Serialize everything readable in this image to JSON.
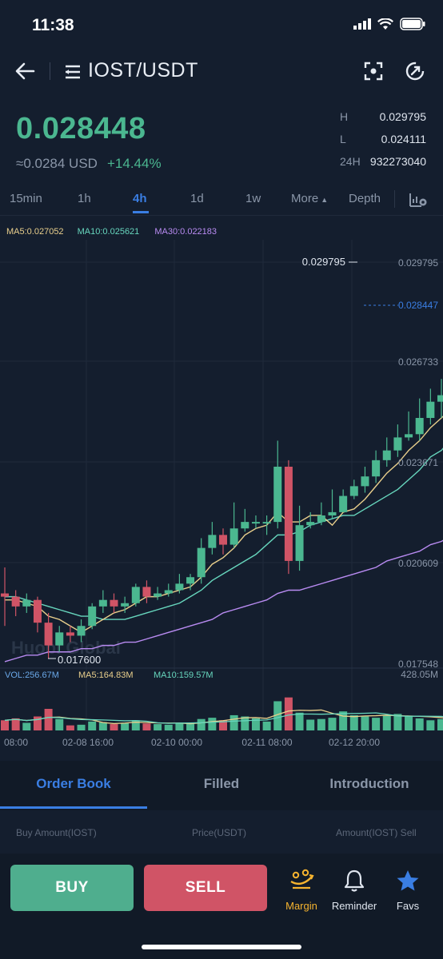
{
  "status": {
    "time": "11:38"
  },
  "header": {
    "pair": "IOST/USDT"
  },
  "ticker": {
    "last_price": "0.028448",
    "approx_usd": "≈0.0284 USD",
    "change": "+14.44%",
    "high_label": "H",
    "high": "0.029795",
    "low_label": "L",
    "low": "0.024111",
    "vol_label": "24H",
    "vol": "932273040"
  },
  "tabs": [
    "15min",
    "1h",
    "4h",
    "1d",
    "1w",
    "More",
    "Depth"
  ],
  "active_tab": "4h",
  "ma": {
    "ma5": "MA5:0.027052",
    "ma10": "MA10:0.025621",
    "ma30": "MA30:0.022183"
  },
  "chart_labels": {
    "y_ticks": [
      "0.029795",
      "0.026733",
      "0.023671",
      "0.020609",
      "0.017548"
    ],
    "current_price_tag": "0.028447",
    "high_marker": "0.029795",
    "low_marker": "0.017600",
    "watermark": "Huobi Global",
    "vol_ma": {
      "vol": "VOL:256.67M",
      "ma5": "MA5:164.83M",
      "ma10": "MA10:159.57M"
    },
    "vol_max": "428.05M",
    "x_ticks": [
      "08:00",
      "02-08 16:00",
      "02-10 00:00",
      "02-11 08:00",
      "02-12 20:00"
    ]
  },
  "colors": {
    "up": "#4bb790",
    "down": "#d05466",
    "ma5": "#e9cf8c",
    "ma10": "#67d6bd",
    "ma30": "#b98bf2",
    "accent": "#3a7ee3"
  },
  "chart_data": {
    "type": "candlestick",
    "x_labels": [
      "08:00",
      "02-08 16:00",
      "02-10 00:00",
      "02-11 08:00",
      "02-12 20:00"
    ],
    "ylim": [
      0.017,
      0.0302
    ],
    "candles": [
      [
        0.0196,
        0.0195,
        0.0204,
        0.0186
      ],
      [
        0.0195,
        0.0192,
        0.0197,
        0.0189
      ],
      [
        0.0192,
        0.0194,
        0.0196,
        0.019
      ],
      [
        0.0194,
        0.0187,
        0.0195,
        0.0184
      ],
      [
        0.0187,
        0.018,
        0.019,
        0.0176
      ],
      [
        0.018,
        0.0184,
        0.0186,
        0.0178
      ],
      [
        0.0184,
        0.0183,
        0.0186,
        0.0181
      ],
      [
        0.0183,
        0.0186,
        0.0188,
        0.0181
      ],
      [
        0.0186,
        0.0192,
        0.0193,
        0.0185
      ],
      [
        0.0192,
        0.0194,
        0.0197,
        0.019
      ],
      [
        0.0194,
        0.0192,
        0.0196,
        0.019
      ],
      [
        0.0192,
        0.0193,
        0.0195,
        0.019
      ],
      [
        0.0193,
        0.0198,
        0.0199,
        0.0192
      ],
      [
        0.0198,
        0.0195,
        0.02,
        0.0193
      ],
      [
        0.0195,
        0.0196,
        0.0198,
        0.0194
      ],
      [
        0.0196,
        0.0197,
        0.0199,
        0.0195
      ],
      [
        0.0197,
        0.0199,
        0.0202,
        0.0196
      ],
      [
        0.0199,
        0.0201,
        0.0202,
        0.0197
      ],
      [
        0.0201,
        0.021,
        0.0213,
        0.0199
      ],
      [
        0.021,
        0.0214,
        0.0218,
        0.0208
      ],
      [
        0.0214,
        0.0211,
        0.0216,
        0.0208
      ],
      [
        0.0211,
        0.0216,
        0.0224,
        0.021
      ],
      [
        0.0216,
        0.0218,
        0.0222,
        0.0215
      ],
      [
        0.0218,
        0.0218,
        0.022,
        0.0216
      ],
      [
        0.0218,
        0.0218,
        0.022,
        0.0214
      ],
      [
        0.0218,
        0.0235,
        0.0243,
        0.0216
      ],
      [
        0.0235,
        0.0206,
        0.0237,
        0.0202
      ],
      [
        0.0206,
        0.0217,
        0.0223,
        0.0203
      ],
      [
        0.0217,
        0.0218,
        0.0221,
        0.0216
      ],
      [
        0.0218,
        0.022,
        0.0224,
        0.0217
      ],
      [
        0.022,
        0.0221,
        0.0228,
        0.0219
      ],
      [
        0.0221,
        0.0226,
        0.0228,
        0.0221
      ],
      [
        0.0226,
        0.0229,
        0.0231,
        0.0225
      ],
      [
        0.0229,
        0.0232,
        0.0235,
        0.0227
      ],
      [
        0.0232,
        0.0237,
        0.024,
        0.023
      ],
      [
        0.0237,
        0.024,
        0.0244,
        0.0235
      ],
      [
        0.024,
        0.0244,
        0.0248,
        0.0238
      ],
      [
        0.0244,
        0.0245,
        0.0252,
        0.0243
      ],
      [
        0.0245,
        0.025,
        0.0256,
        0.0243
      ],
      [
        0.025,
        0.0255,
        0.0259,
        0.0248
      ],
      [
        0.0255,
        0.0257,
        0.0262,
        0.025
      ],
      [
        0.0257,
        0.026,
        0.026,
        0.0245
      ],
      [
        0.0258,
        0.0263,
        0.0267,
        0.025
      ],
      [
        0.0263,
        0.0273,
        0.0286,
        0.0261
      ],
      [
        0.0273,
        0.0284,
        0.0298,
        0.0271
      ]
    ],
    "ma5": [
      0.0194,
      0.0194,
      0.0193,
      0.0192,
      0.0189,
      0.0188,
      0.0186,
      0.0184,
      0.0186,
      0.0188,
      0.019,
      0.0191,
      0.0193,
      0.0195,
      0.0195,
      0.0196,
      0.0197,
      0.0198,
      0.0201,
      0.0205,
      0.0207,
      0.021,
      0.0214,
      0.0216,
      0.0217,
      0.0221,
      0.0218,
      0.0218,
      0.022,
      0.022,
      0.0217,
      0.0221,
      0.0222,
      0.0225,
      0.0229,
      0.0233,
      0.0236,
      0.024,
      0.0243,
      0.0247,
      0.025,
      0.0253,
      0.0257,
      0.0262,
      0.0267
    ],
    "ma10": [
      0.0195,
      0.0195,
      0.0194,
      0.0193,
      0.0192,
      0.0191,
      0.019,
      0.0189,
      0.0189,
      0.0188,
      0.0188,
      0.0188,
      0.0189,
      0.019,
      0.0191,
      0.0192,
      0.0193,
      0.0195,
      0.0197,
      0.02,
      0.0202,
      0.0204,
      0.0206,
      0.0208,
      0.0211,
      0.0214,
      0.0214,
      0.0215,
      0.0217,
      0.0218,
      0.0219,
      0.022,
      0.022,
      0.0222,
      0.0224,
      0.0226,
      0.0228,
      0.0231,
      0.0234,
      0.0238,
      0.024,
      0.0244,
      0.0247,
      0.0252,
      0.0256
    ],
    "ma30": [
      0.0175,
      0.0176,
      0.0177,
      0.0177,
      0.0178,
      0.0178,
      0.0178,
      0.0179,
      0.0179,
      0.018,
      0.018,
      0.0181,
      0.0181,
      0.0182,
      0.0183,
      0.0184,
      0.0185,
      0.0186,
      0.0187,
      0.0188,
      0.019,
      0.0191,
      0.0192,
      0.0193,
      0.0194,
      0.0196,
      0.0197,
      0.0197,
      0.0198,
      0.0199,
      0.02,
      0.0201,
      0.0202,
      0.0203,
      0.0204,
      0.0206,
      0.0207,
      0.0208,
      0.0209,
      0.0211,
      0.0212,
      0.0214,
      0.0216,
      0.0218,
      0.0222
    ],
    "volume": [
      80,
      95,
      60,
      110,
      170,
      90,
      40,
      45,
      70,
      65,
      50,
      60,
      80,
      55,
      50,
      45,
      60,
      55,
      90,
      100,
      80,
      120,
      110,
      95,
      70,
      230,
      260,
      140,
      85,
      90,
      100,
      150,
      120,
      110,
      100,
      120,
      130,
      110,
      95,
      80,
      90,
      70,
      95,
      130,
      180
    ],
    "vol_max": 428.05
  },
  "lower_tabs": [
    "Order Book",
    "Filled",
    "Introduction"
  ],
  "order_book": {
    "buy_amount": "Buy  Amount(IOST)",
    "price": "Price(USDT)",
    "sell_amount": "Amount(IOST)  Sell"
  },
  "actions": {
    "buy": "BUY",
    "sell": "SELL"
  },
  "nav": {
    "margin": "Margin",
    "reminder": "Reminder",
    "favs": "Favs"
  }
}
